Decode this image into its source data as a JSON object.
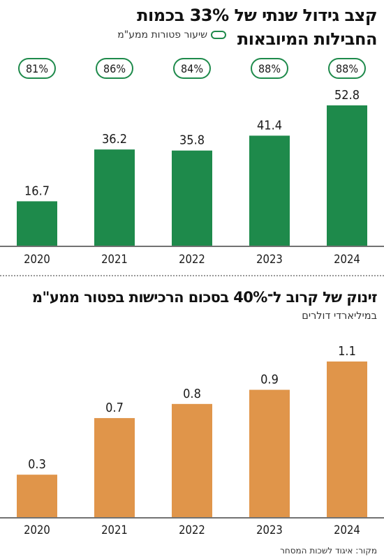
{
  "chart_top": {
    "title_line1": "קצב גידול שנתי של 33% בכמות",
    "title_line2": "החבילות המיובאות",
    "legend_label": "שיעור פטורות ממע\"מ",
    "colors": {
      "bar": "#1e8a4b",
      "pill_border": "#1e8a4b"
    }
  },
  "chart_bottom": {
    "title": "זינוק של קרוב ל־40% בסכום הרכישות בפטור ממע\"מ",
    "subtitle": "במיליארדי דולרים",
    "colors": {
      "bar": "#e0954a"
    }
  },
  "source": "מקור: איגוד לשכות המסחר",
  "chart_data": [
    {
      "type": "bar",
      "title": "קצב גידול שנתי של 33% בכמות החבילות המיובאות",
      "categories": [
        "2020",
        "2021",
        "2022",
        "2023",
        "2024"
      ],
      "values": [
        16.7,
        36.2,
        35.8,
        41.4,
        52.8
      ],
      "value_labels": [
        "16.7",
        "36.2",
        "35.8",
        "41.4",
        "52.8"
      ],
      "ylim": [
        0,
        60
      ],
      "series": [
        {
          "name": "שיעור פטורות ממע\"מ",
          "values": [
            81,
            86,
            84,
            88,
            88
          ],
          "labels": [
            "81%",
            "86%",
            "84%",
            "88%",
            "88%"
          ]
        }
      ],
      "grid": false
    },
    {
      "type": "bar",
      "title": "זינוק של קרוב ל־40% בסכום הרכישות בפטור ממע\"מ",
      "subtitle": "במיליארדי דולרים",
      "categories": [
        "2020",
        "2021",
        "2022",
        "2023",
        "2024"
      ],
      "values": [
        0.3,
        0.7,
        0.8,
        0.9,
        1.1
      ],
      "value_labels": [
        "0.3",
        "0.7",
        "0.8",
        "0.9",
        "1.1"
      ],
      "ylim": [
        0,
        1.2
      ],
      "grid": false
    }
  ]
}
